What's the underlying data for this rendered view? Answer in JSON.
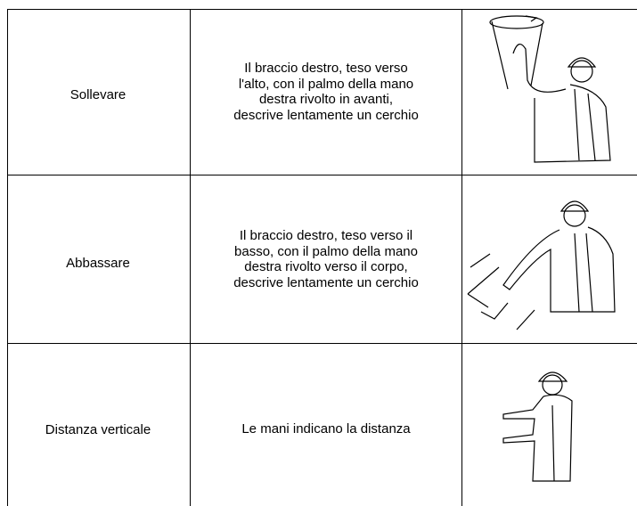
{
  "table": {
    "rows": [
      {
        "label": "Sollevare",
        "description": [
          "Il braccio destro, teso verso",
          "l'alto, con il palmo della mano",
          "destra rivolto in avanti,",
          "descrive lentamente un cerchio"
        ]
      },
      {
        "label": "Abbassare",
        "description": [
          "Il braccio destro, teso verso il",
          "basso, con il palmo della mano",
          "destra rivolto verso il corpo,",
          "descrive lentamente un cerchio"
        ]
      },
      {
        "label": "Distanza verticale",
        "description": [
          "Le mani indicano la distanza"
        ]
      }
    ]
  }
}
